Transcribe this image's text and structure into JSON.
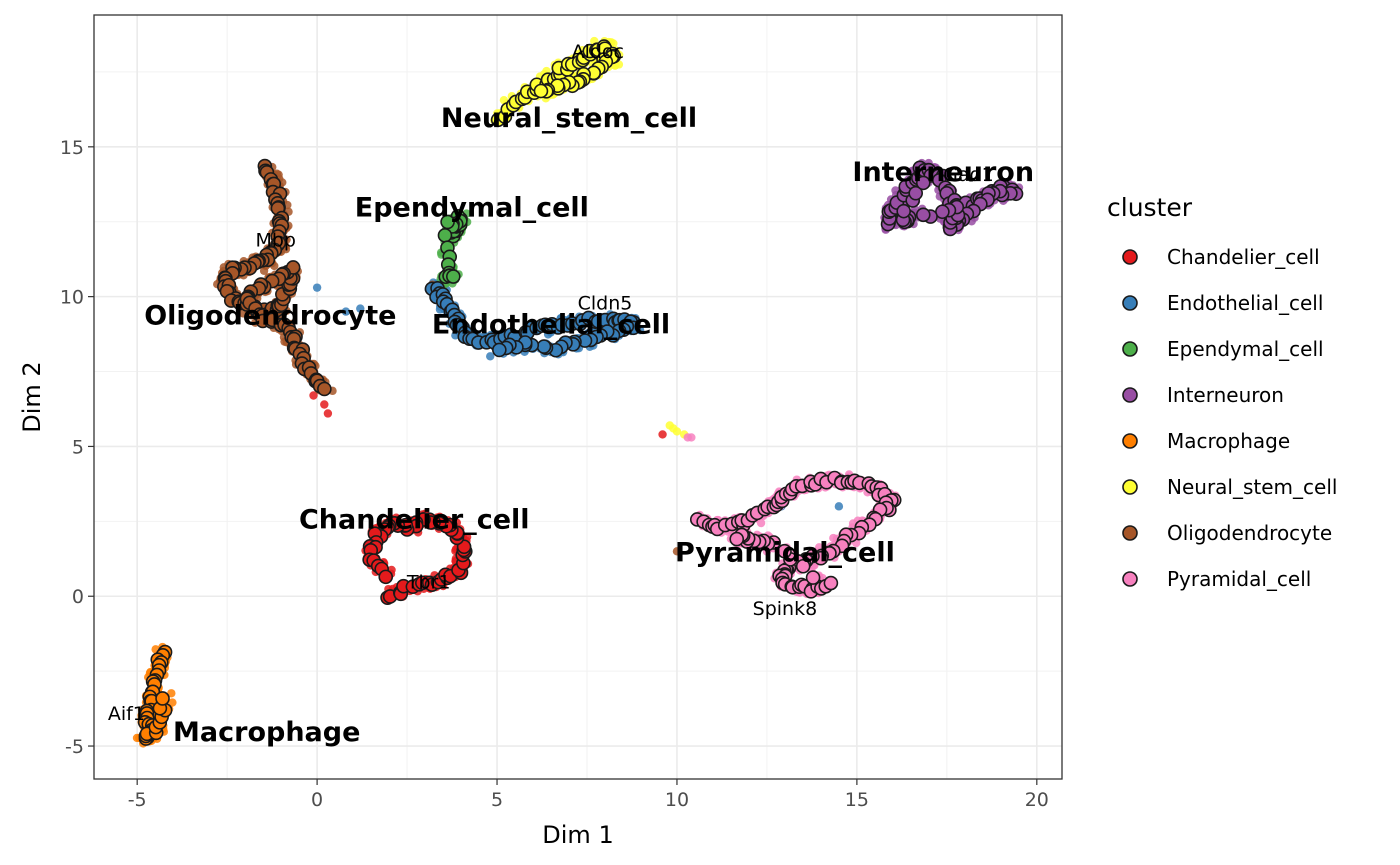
{
  "chart_data": {
    "type": "scatter",
    "xlabel": "Dim 1",
    "ylabel": "Dim 2",
    "xlim": [
      -6.2,
      20.7
    ],
    "ylim": [
      -6.1,
      19.4
    ],
    "x_ticks": [
      -5,
      0,
      5,
      10,
      15,
      20
    ],
    "y_ticks": [
      -5,
      0,
      5,
      10,
      15
    ],
    "grid": true,
    "legend_title": "cluster",
    "legend_position": "right",
    "clusters": [
      {
        "name": "Chandelier_cell",
        "color": "#E41A1C",
        "path": [
          [
            2.0,
            0.0
          ],
          [
            2.6,
            0.3
          ],
          [
            3.3,
            0.5
          ],
          [
            3.9,
            0.8
          ],
          [
            4.1,
            1.6
          ],
          [
            3.8,
            2.3
          ],
          [
            3.2,
            2.6
          ],
          [
            2.6,
            2.3
          ],
          [
            2.1,
            2.4
          ],
          [
            1.6,
            2.0
          ],
          [
            1.5,
            1.3
          ],
          [
            2.0,
            0.6
          ]
        ],
        "extra": [
          [
            0.0,
            7.0
          ],
          [
            0.2,
            6.4
          ],
          [
            0.3,
            6.1
          ],
          [
            -0.1,
            6.7
          ],
          [
            9.6,
            5.4
          ]
        ]
      },
      {
        "name": "Endothelial_cell",
        "color": "#377EB8",
        "path": [
          [
            3.2,
            10.3
          ],
          [
            3.5,
            9.9
          ],
          [
            3.8,
            9.4
          ],
          [
            4.0,
            8.9
          ],
          [
            4.5,
            8.5
          ],
          [
            5.3,
            8.6
          ],
          [
            6.0,
            8.9
          ],
          [
            6.8,
            9.1
          ],
          [
            7.5,
            9.2
          ],
          [
            8.3,
            9.2
          ],
          [
            8.8,
            9.1
          ],
          [
            8.3,
            8.8
          ],
          [
            7.4,
            8.5
          ],
          [
            6.6,
            8.3
          ],
          [
            5.7,
            8.4
          ],
          [
            4.9,
            8.2
          ]
        ],
        "extra": [
          [
            0.0,
            10.3
          ],
          [
            0.8,
            9.5
          ],
          [
            1.2,
            9.6
          ],
          [
            12.9,
            3.0
          ],
          [
            14.5,
            3.0
          ]
        ]
      },
      {
        "name": "Ependymal_cell",
        "color": "#4DAF4A",
        "path": [
          [
            3.7,
            12.0
          ],
          [
            3.8,
            12.2
          ],
          [
            3.9,
            12.4
          ],
          [
            4.0,
            12.6
          ],
          [
            3.6,
            12.4
          ],
          [
            3.6,
            10.7
          ],
          [
            3.8,
            10.6
          ]
        ],
        "extra": []
      },
      {
        "name": "Interneuron",
        "color": "#984EA3",
        "path": [
          [
            15.8,
            12.4
          ],
          [
            16.1,
            13.0
          ],
          [
            16.5,
            13.8
          ],
          [
            16.8,
            14.3
          ],
          [
            17.3,
            14.0
          ],
          [
            17.6,
            13.2
          ],
          [
            18.0,
            13.0
          ],
          [
            18.5,
            13.3
          ],
          [
            19.0,
            13.6
          ],
          [
            19.4,
            13.5
          ],
          [
            18.7,
            13.4
          ],
          [
            18.0,
            12.6
          ],
          [
            17.6,
            12.3
          ],
          [
            17.8,
            12.9
          ],
          [
            16.5,
            12.6
          ],
          [
            16.2,
            12.5
          ],
          [
            17.0,
            14.1
          ]
        ],
        "extra": []
      },
      {
        "name": "Macrophage",
        "color": "#FF7F00",
        "path": [
          [
            -4.3,
            -1.8
          ],
          [
            -4.4,
            -2.4
          ],
          [
            -4.5,
            -3.0
          ],
          [
            -4.6,
            -3.6
          ],
          [
            -4.7,
            -4.1
          ],
          [
            -4.6,
            -4.6
          ],
          [
            -4.8,
            -4.8
          ],
          [
            -4.4,
            -4.3
          ],
          [
            -4.2,
            -3.2
          ]
        ],
        "extra": []
      },
      {
        "name": "Neural_stem_cell",
        "color": "#FFFF33",
        "path": [
          [
            5.0,
            15.9
          ],
          [
            5.6,
            16.6
          ],
          [
            6.2,
            17.0
          ],
          [
            6.7,
            17.5
          ],
          [
            7.2,
            17.9
          ],
          [
            7.7,
            18.2
          ],
          [
            8.0,
            18.4
          ],
          [
            8.2,
            18.0
          ],
          [
            7.8,
            17.6
          ],
          [
            7.3,
            17.2
          ],
          [
            6.7,
            17.0
          ],
          [
            6.2,
            16.8
          ]
        ],
        "extra": [
          [
            9.9,
            5.6
          ],
          [
            10.0,
            5.5
          ],
          [
            10.2,
            5.4
          ],
          [
            9.8,
            5.7
          ]
        ]
      },
      {
        "name": "Oligodendrocyte",
        "color": "#A65628",
        "path": [
          [
            -1.4,
            14.3
          ],
          [
            -1.2,
            13.7
          ],
          [
            -1.0,
            13.0
          ],
          [
            -1.0,
            12.3
          ],
          [
            -1.1,
            11.7
          ],
          [
            -1.4,
            11.2
          ],
          [
            -1.9,
            11.0
          ],
          [
            -2.4,
            10.9
          ],
          [
            -2.6,
            10.4
          ],
          [
            -2.3,
            9.9
          ],
          [
            -1.8,
            9.6
          ],
          [
            -1.3,
            9.4
          ],
          [
            -1.0,
            9.7
          ],
          [
            -0.8,
            10.3
          ],
          [
            -0.7,
            10.9
          ],
          [
            -1.4,
            10.4
          ],
          [
            -2.0,
            10.0
          ],
          [
            -1.6,
            9.3
          ],
          [
            -0.9,
            9.1
          ],
          [
            -0.6,
            8.5
          ],
          [
            -0.4,
            7.9
          ],
          [
            -0.1,
            7.3
          ],
          [
            0.3,
            6.9
          ]
        ],
        "extra": [
          [
            3.2,
            10.4
          ],
          [
            3.4,
            10.3
          ],
          [
            10.0,
            1.5
          ]
        ]
      },
      {
        "name": "Pyramidal_cell",
        "color": "#F781BF",
        "path": [
          [
            10.6,
            2.5
          ],
          [
            11.2,
            2.3
          ],
          [
            11.9,
            2.5
          ],
          [
            12.5,
            2.9
          ],
          [
            13.0,
            3.3
          ],
          [
            13.5,
            3.7
          ],
          [
            14.2,
            3.9
          ],
          [
            14.9,
            3.8
          ],
          [
            15.5,
            3.6
          ],
          [
            16.0,
            3.2
          ],
          [
            15.7,
            2.8
          ],
          [
            15.0,
            2.2
          ],
          [
            14.4,
            1.6
          ],
          [
            13.8,
            1.3
          ],
          [
            13.2,
            1.0
          ],
          [
            12.9,
            0.7
          ],
          [
            13.1,
            0.4
          ],
          [
            13.7,
            0.2
          ],
          [
            14.2,
            0.4
          ],
          [
            12.6,
            1.8
          ],
          [
            12.0,
            1.9
          ],
          [
            11.5,
            2.0
          ]
        ],
        "extra": [
          [
            10.4,
            5.3
          ],
          [
            10.3,
            5.3
          ]
        ]
      }
    ],
    "cluster_labels": [
      {
        "text": "Neural_stem_cell",
        "x": 7.0,
        "y": 16.0
      },
      {
        "text": "Ependymal_cell",
        "x": 4.3,
        "y": 13.0
      },
      {
        "text": "Interneuron",
        "x": 17.4,
        "y": 14.2
      },
      {
        "text": "Oligodendrocyte",
        "x": -1.3,
        "y": 9.4
      },
      {
        "text": "Endothelial_cell",
        "x": 6.5,
        "y": 9.1
      },
      {
        "text": "Chandelier_cell",
        "x": 2.7,
        "y": 2.6
      },
      {
        "text": "Pyramidal_cell",
        "x": 13.0,
        "y": 1.5
      },
      {
        "text": "Macrophage",
        "x": -1.4,
        "y": -4.5
      }
    ],
    "gene_labels": [
      {
        "text": "Aldoc",
        "x": 7.8,
        "y": 18.2
      },
      {
        "text": "Gad1",
        "x": 18.1,
        "y": 14.1
      },
      {
        "text": "Mbp",
        "x": -1.15,
        "y": 11.9
      },
      {
        "text": "Cldn5",
        "x": 8.0,
        "y": 9.8
      },
      {
        "text": "Tbr1",
        "x": 3.1,
        "y": 0.5
      },
      {
        "text": "Spink8",
        "x": 13.0,
        "y": -0.4
      },
      {
        "text": "Aif1",
        "x": -5.3,
        "y": -3.9
      }
    ]
  }
}
